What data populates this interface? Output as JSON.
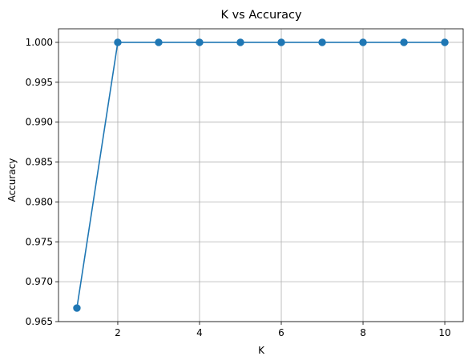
{
  "chart_data": {
    "type": "line",
    "title": "K vs Accuracy",
    "xlabel": "K",
    "ylabel": "Accuracy",
    "x": [
      1,
      2,
      3,
      4,
      5,
      6,
      7,
      8,
      9,
      10
    ],
    "series": [
      {
        "values": [
          0.9667,
          1.0,
          1.0,
          1.0,
          1.0,
          1.0,
          1.0,
          1.0,
          1.0,
          1.0
        ],
        "color": "#1f77b4",
        "marker": "circle"
      }
    ],
    "xlim": [
      0.55,
      10.45
    ],
    "ylim": [
      0.965,
      1.0017
    ],
    "xticks": [
      2,
      4,
      6,
      8,
      10
    ],
    "xtick_labels": [
      "2",
      "4",
      "6",
      "8",
      "10"
    ],
    "yticks": [
      0.965,
      0.97,
      0.975,
      0.98,
      0.985,
      0.99,
      0.995,
      1.0
    ],
    "ytick_labels": [
      "0.965",
      "0.970",
      "0.975",
      "0.980",
      "0.985",
      "0.990",
      "0.995",
      "1.000"
    ],
    "grid": true,
    "legend": false
  }
}
